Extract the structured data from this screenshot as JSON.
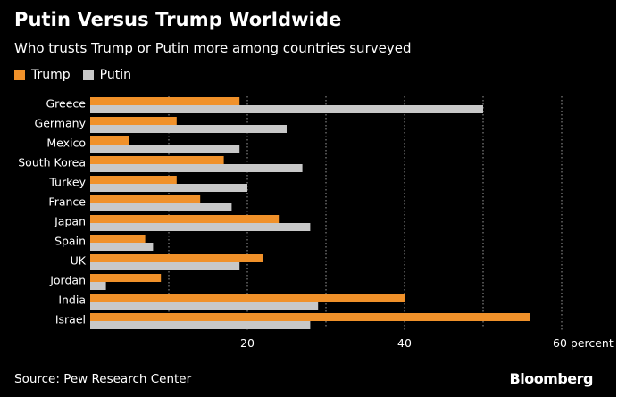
{
  "header": {
    "title": "Putin Versus Trump Worldwide",
    "subtitle": "Who trusts Trump or Putin more among countries surveyed"
  },
  "footer": {
    "source": "Source: Pew Research Center",
    "brand": "Bloomberg"
  },
  "colors": {
    "trump": "#f0912a",
    "putin": "#c8c8c8",
    "background": "#000000",
    "text": "#ffffff",
    "gridline": "#9a9a9a"
  },
  "chart_data": {
    "type": "bar",
    "orientation": "horizontal",
    "title": "Putin Versus Trump Worldwide",
    "subtitle": "Who trusts Trump or Putin more among countries surveyed",
    "categories": [
      "Greece",
      "Germany",
      "Mexico",
      "South Korea",
      "Turkey",
      "France",
      "Japan",
      "Spain",
      "UK",
      "Jordan",
      "India",
      "Israel"
    ],
    "series": [
      {
        "name": "Trump",
        "values": [
          19,
          11,
          5,
          17,
          11,
          14,
          24,
          7,
          22,
          9,
          40,
          56
        ]
      },
      {
        "name": "Putin",
        "values": [
          50,
          25,
          19,
          27,
          20,
          18,
          28,
          8,
          19,
          2,
          29,
          28
        ]
      }
    ],
    "xlim": [
      0,
      65
    ],
    "xticks": [
      20,
      40,
      60
    ],
    "xtick_labels": [
      "20",
      "40",
      "60 percent"
    ],
    "grid": "vertical dotted",
    "legend": "top-left"
  }
}
